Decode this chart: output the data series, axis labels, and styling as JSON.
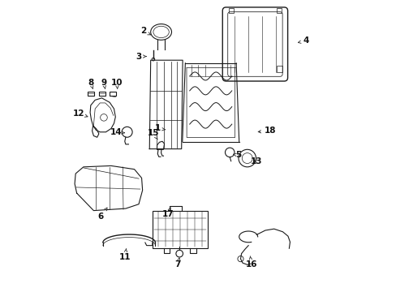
{
  "background_color": "#ffffff",
  "line_color": "#1a1a1a",
  "fig_width": 4.89,
  "fig_height": 3.6,
  "dpi": 100,
  "label_positions": {
    "1": [
      0.36,
      0.56,
      0.395,
      0.555
    ],
    "2": [
      0.31,
      0.895,
      0.345,
      0.878
    ],
    "3": [
      0.295,
      0.808,
      0.33,
      0.808
    ],
    "4": [
      0.87,
      0.862,
      0.84,
      0.855
    ],
    "5": [
      0.638,
      0.468,
      0.618,
      0.472
    ],
    "6": [
      0.165,
      0.258,
      0.188,
      0.29
    ],
    "7": [
      0.43,
      0.092,
      0.435,
      0.118
    ],
    "8": [
      0.13,
      0.718,
      0.138,
      0.695
    ],
    "9": [
      0.175,
      0.718,
      0.18,
      0.695
    ],
    "10": [
      0.22,
      0.718,
      0.222,
      0.695
    ],
    "11": [
      0.248,
      0.118,
      0.252,
      0.148
    ],
    "12": [
      0.088,
      0.612,
      0.122,
      0.6
    ],
    "13": [
      0.7,
      0.448,
      0.682,
      0.452
    ],
    "14": [
      0.218,
      0.548,
      0.248,
      0.545
    ],
    "15": [
      0.345,
      0.545,
      0.36,
      0.522
    ],
    "16": [
      0.682,
      0.092,
      0.678,
      0.122
    ],
    "17": [
      0.395,
      0.265,
      0.405,
      0.29
    ],
    "18": [
      0.748,
      0.552,
      0.695,
      0.548
    ]
  }
}
